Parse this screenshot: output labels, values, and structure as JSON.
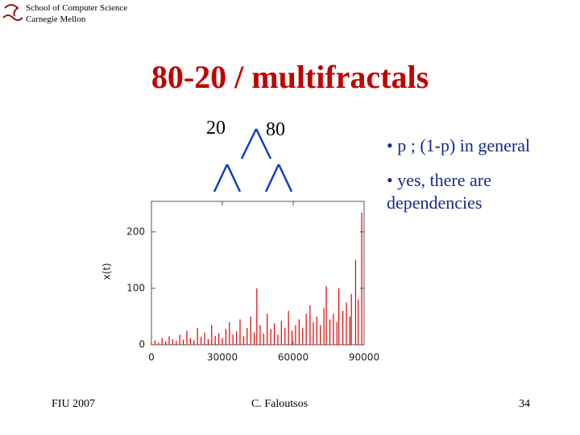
{
  "header": {
    "line1": "School of Computer Science",
    "line2": "Carnegie Mellon"
  },
  "title": "80-20 / multifractals",
  "cascade": {
    "left": "20",
    "right": "80"
  },
  "bullets": [
    "• p ; (1-p) in general",
    "• yes, there are dependencies"
  ],
  "footer": {
    "left": "FIU 2007",
    "center": "C. Faloutsos",
    "right": "34"
  },
  "chart_data": {
    "type": "spike",
    "y_label": "x(t)",
    "color": "#e00000",
    "xlim": [
      0,
      90000
    ],
    "ylim": [
      0,
      254
    ],
    "xticks": [
      0,
      30000,
      60000,
      90000
    ],
    "yticks": [
      0,
      100,
      200
    ],
    "x": [
      0,
      1500,
      3000,
      4500,
      6000,
      7500,
      9000,
      10500,
      12000,
      13500,
      15000,
      16500,
      18000,
      19500,
      21000,
      22500,
      24000,
      25500,
      27000,
      28500,
      30000,
      31500,
      33000,
      34500,
      36000,
      37500,
      39000,
      40500,
      42000,
      43500,
      44600,
      46000,
      47500,
      49000,
      50500,
      52000,
      53500,
      55000,
      56500,
      58000,
      59500,
      61000,
      62500,
      64000,
      65500,
      67100,
      68500,
      70000,
      71500,
      73000,
      74000,
      75500,
      77000,
      78500,
      79300,
      81000,
      82500,
      84000,
      84600,
      86400,
      87500,
      89000
    ],
    "values": [
      5,
      8,
      4,
      12,
      6,
      15,
      10,
      7,
      18,
      9,
      25,
      12,
      8,
      30,
      14,
      22,
      10,
      35,
      16,
      20,
      12,
      28,
      40,
      18,
      24,
      45,
      15,
      30,
      50,
      22,
      100,
      35,
      20,
      55,
      28,
      38,
      18,
      42,
      30,
      60,
      25,
      35,
      45,
      30,
      55,
      70,
      40,
      50,
      35,
      65,
      104,
      45,
      55,
      40,
      100,
      60,
      75,
      50,
      90,
      150,
      80,
      234
    ]
  }
}
